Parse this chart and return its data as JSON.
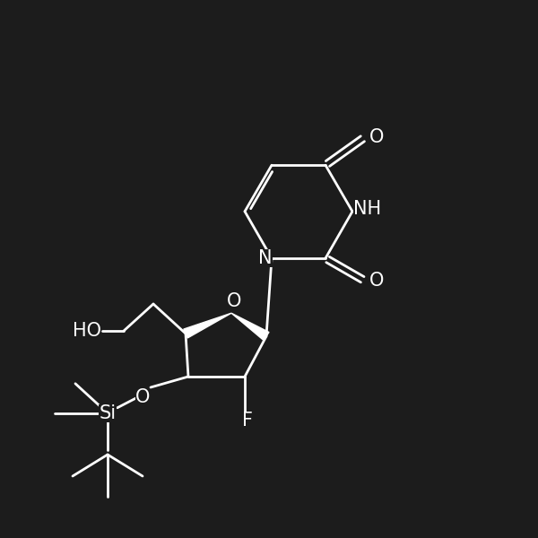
{
  "background_color": "#1c1c1c",
  "line_color": "#ffffff",
  "line_width": 2.0,
  "figsize": [
    6.0,
    6.0
  ],
  "dpi": 100,
  "xlim": [
    0,
    10
  ],
  "ylim": [
    0,
    10
  ]
}
